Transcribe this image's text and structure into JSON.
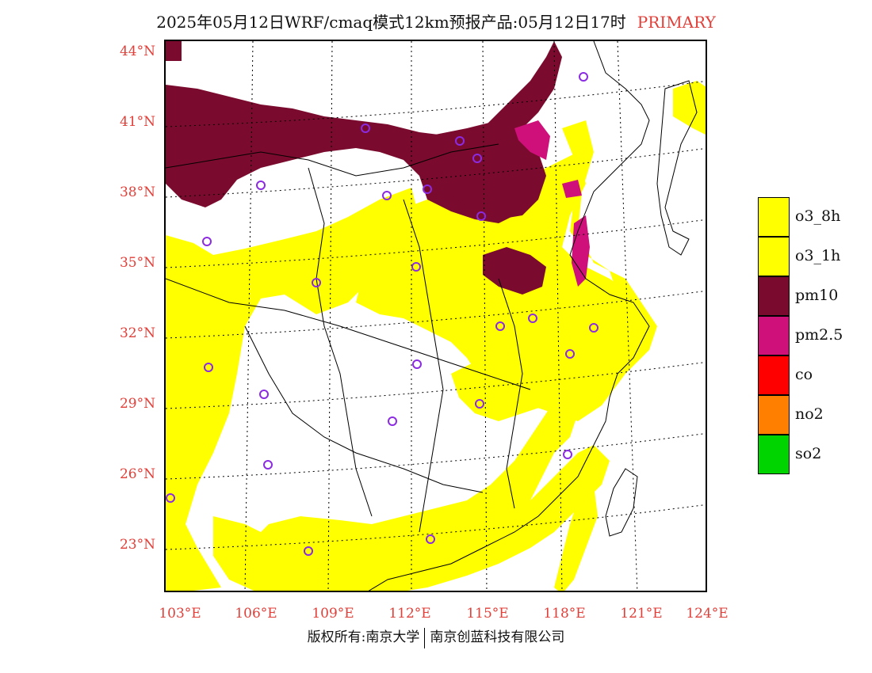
{
  "title": {
    "text": "2025年05月12日WRF/cmaq模式12km预报产品:05月12日17时",
    "tag": "PRIMARY",
    "tag_color": "#e0403a"
  },
  "map": {
    "lat_labels": [
      "44°N",
      "41°N",
      "38°N",
      "35°N",
      "32°N",
      "29°N",
      "26°N",
      "23°N"
    ],
    "lon_labels": [
      "103°E",
      "106°E",
      "109°E",
      "112°E",
      "115°E",
      "118°E",
      "121°E",
      "124°E"
    ],
    "label_color": "#e0403a",
    "station_marker": "circle-marker",
    "station_color": "#8b2be2"
  },
  "legend": {
    "items": [
      {
        "label": "o3_8h",
        "color": "#ffff00"
      },
      {
        "label": "o3_1h",
        "color": "#ffff00"
      },
      {
        "label": "pm10",
        "color": "#7a0b2e"
      },
      {
        "label": "pm2.5",
        "color": "#d0107a"
      },
      {
        "label": "co",
        "color": "#ff0000"
      },
      {
        "label": "no2",
        "color": "#ff7f00"
      },
      {
        "label": "so2",
        "color": "#00d400"
      }
    ]
  },
  "footer": {
    "left": "版权所有:南京大学",
    "right": "南京创蓝科技有限公司"
  }
}
